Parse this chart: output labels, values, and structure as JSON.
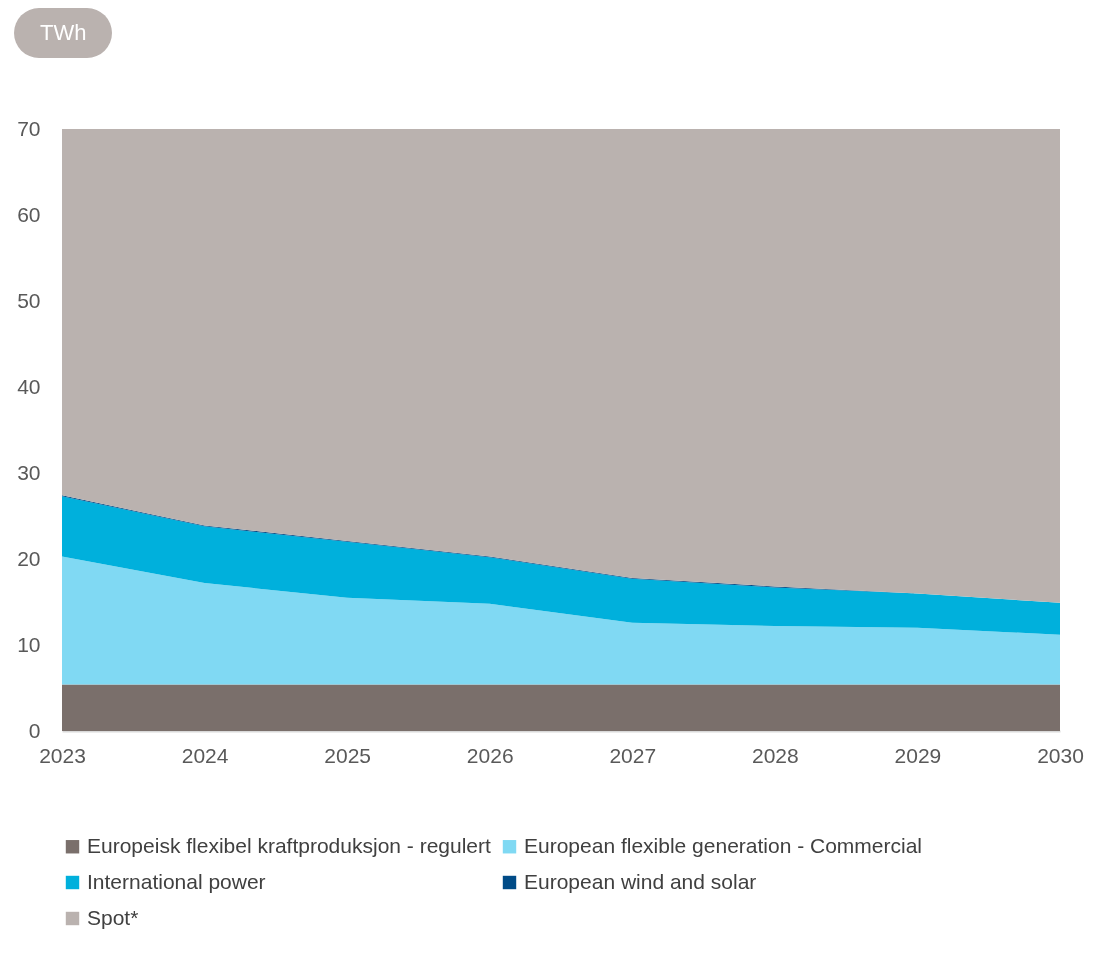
{
  "chart_data": {
    "type": "area",
    "stacked": true,
    "ylabel": "TWh",
    "x": [
      2023,
      2024,
      2025,
      2026,
      2027,
      2028,
      2029,
      2030
    ],
    "xlim": [
      2023,
      2030
    ],
    "xticks": [
      2023,
      2024,
      2025,
      2026,
      2027,
      2028,
      2029,
      2030
    ],
    "ylim": [
      0,
      70
    ],
    "yticks": [
      0,
      10,
      20,
      30,
      40,
      50,
      60,
      70
    ],
    "grid": false,
    "legend": "bottom",
    "series": [
      {
        "name": "Europeisk flexibel kraftproduksjon - regulert",
        "color": "#7a6f6b",
        "values": [
          5.4,
          5.4,
          5.4,
          5.4,
          5.4,
          5.4,
          5.4,
          5.4
        ]
      },
      {
        "name": "European flexible generation - Commercial",
        "color": "#80d9f3",
        "values": [
          14.9,
          11.8,
          10.1,
          9.4,
          7.2,
          6.8,
          6.6,
          5.8
        ]
      },
      {
        "name": "International power",
        "color": "#00b0dc",
        "values": [
          7.0,
          6.6,
          6.5,
          5.4,
          5.1,
          4.5,
          4.0,
          3.7
        ]
      },
      {
        "name": "European wind and solar",
        "color": "#004b87",
        "values": [
          0.1,
          0.1,
          0.1,
          0.1,
          0.1,
          0.1,
          0,
          0
        ]
      },
      {
        "name": "Spot*",
        "color": "#bab2af",
        "values": [
          42.6,
          46.1,
          47.9,
          49.7,
          52.2,
          53.2,
          54.0,
          55.1
        ]
      }
    ]
  }
}
